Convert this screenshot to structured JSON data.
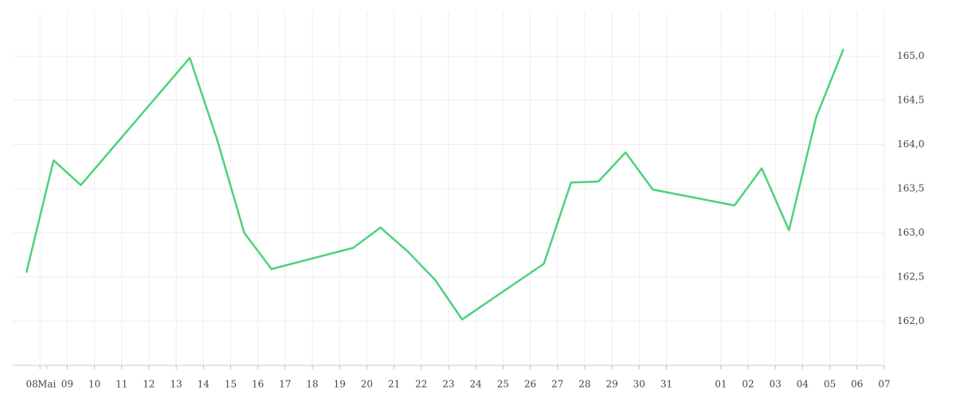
{
  "chart_data": {
    "type": "line",
    "x": [
      -0.5,
      0.5,
      1.5,
      5.5,
      6.5,
      7.5,
      8.5,
      11.5,
      12.5,
      13.5,
      14.5,
      15.5,
      18.5,
      19.5,
      20.5,
      21.5,
      22.5,
      25.5,
      26.5,
      27.5,
      28.5,
      29.5
    ],
    "series": [
      {
        "color": "#4cd27b",
        "values": [
          162.55,
          163.82,
          163.54,
          164.98,
          164.06,
          163.0,
          162.59,
          162.83,
          163.06,
          162.79,
          162.47,
          162.02,
          162.65,
          163.57,
          163.58,
          163.91,
          163.49,
          163.31,
          163.73,
          163.03,
          164.31,
          165.08
        ]
      }
    ],
    "xlim": [
      -1,
      31
    ],
    "xticks": [
      {
        "value": 0,
        "label": "08"
      },
      {
        "value": 0.25,
        "label": "Mai"
      },
      {
        "value": 1,
        "label": "09"
      },
      10,
      11,
      12,
      13,
      14,
      15,
      16,
      17,
      18,
      19,
      20,
      21,
      22,
      23,
      24,
      25,
      26,
      27,
      28,
      29,
      30,
      31,
      {
        "value": 25,
        "label": "01"
      },
      {
        "value": 26,
        "label": "02"
      },
      {
        "value": 27,
        "label": "03"
      },
      {
        "value": 28,
        "label": "04"
      },
      {
        "value": 29,
        "label": "05"
      },
      {
        "value": 30,
        "label": "06"
      },
      {
        "value": 31,
        "label": "07"
      }
    ],
    "ylim": [
      161.5,
      165.5
    ],
    "yticks": [
      {
        "value": 162,
        "label": "162,0"
      },
      {
        "value": 162.5,
        "label": "162,5"
      },
      {
        "value": 163,
        "label": "163,0"
      },
      {
        "value": 163.5,
        "label": "163,5"
      },
      {
        "value": 164,
        "label": "164,0"
      },
      {
        "value": 164.5,
        "label": "164,5"
      },
      {
        "value": 165,
        "label": "165,0"
      }
    ],
    "grid": true
  }
}
